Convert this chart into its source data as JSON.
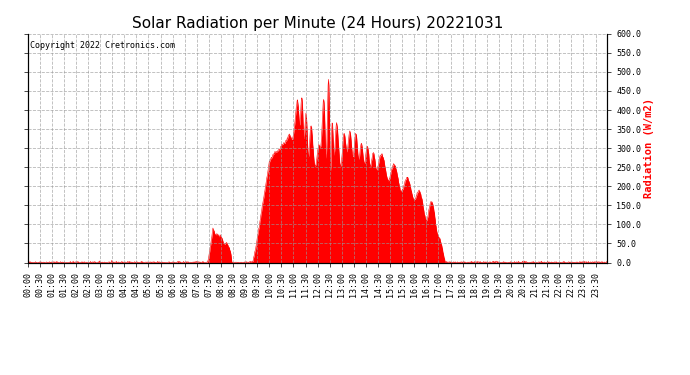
{
  "title": "Solar Radiation per Minute (24 Hours) 20221031",
  "ylabel": "Radiation (W/m2)",
  "ylabel_color": "#ff0000",
  "copyright_text": "Copyright 2022 Cretronics.com",
  "background_color": "#ffffff",
  "fill_color": "#ff0000",
  "line_color": "#ff0000",
  "dashed_line_color": "#ff0000",
  "grid_color": "#999999",
  "ylim": [
    0.0,
    600.0
  ],
  "yticks": [
    0.0,
    50.0,
    100.0,
    150.0,
    200.0,
    250.0,
    300.0,
    350.0,
    400.0,
    450.0,
    500.0,
    550.0,
    600.0
  ],
  "title_fontsize": 11,
  "label_fontsize": 7.5,
  "tick_fontsize": 6.0
}
